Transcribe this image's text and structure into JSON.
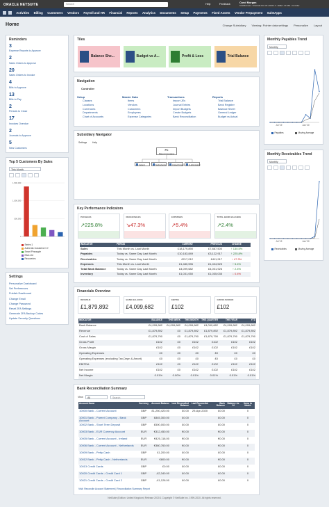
{
  "header": {
    "logo": "ORACLE NETSUITE",
    "search": "Search",
    "help": "Help",
    "feedback": "Feedback",
    "user": "Carol Morgan",
    "role": "SuiteBusiness - Financials First UK v2020.1.0 - EMEA - FF MW - Controller"
  },
  "nav": [
    "Activities",
    "Billing",
    "Customers",
    "Vendors",
    "Payroll and HR",
    "Financial",
    "Reports",
    "Analytics",
    "Documents",
    "Setup",
    "Payments",
    "Fixed Assets",
    "Vendor Prepayment",
    "SuiteApps"
  ],
  "page": {
    "title": "Home",
    "links": [
      "Change Subsidiary",
      "Viewing: Pointer data settings",
      "Personalize",
      "Layout"
    ]
  },
  "reminders": {
    "title": "Reminders",
    "items": [
      {
        "count": "3",
        "label": "Expense Reports to Approve"
      },
      {
        "count": "2",
        "label": "Sales Orders to Approve"
      },
      {
        "count": "20",
        "label": "Sales Orders to Invoice"
      },
      {
        "count": "4",
        "label": "Bills to Approve"
      },
      {
        "count": "13",
        "label": "Bills to Pay"
      },
      {
        "count": "2",
        "label": "Periods to Close"
      },
      {
        "count": "17",
        "label": "Invoices Overdue"
      },
      {
        "count": "2",
        "label": "Journals to Approve"
      },
      {
        "count": "5",
        "label": "New Customers"
      }
    ]
  },
  "top_customers": {
    "title": "Top 5 Customers By Sales",
    "period": "This Month",
    "chart": {
      "type": "bar",
      "ylim": [
        0,
        1500000
      ],
      "yticks": [
        0,
        {
          "value": 500000,
          "label": "500,000"
        },
        {
          "value": 1000000,
          "label": "1,000,000"
        },
        {
          "value": 1500000,
          "label": "1,500,000"
        }
      ],
      "series": [
        {
          "name": "Series 1",
          "color": "#d0342c",
          "values": [
            1400000
          ]
        },
        {
          "name": "Authentic Industries N.Y.",
          "color": "#f0a32f",
          "values": [
            320000
          ]
        },
        {
          "name": "Smart Pineapple",
          "color": "#4caf50",
          "values": [
            250000
          ]
        },
        {
          "name": "Eliza Ltd",
          "color": "#7e57c2",
          "values": [
            180000
          ]
        },
        {
          "name": "Recoveries",
          "color": "#2a63b0",
          "values": [
            120000
          ]
        }
      ]
    }
  },
  "settings": {
    "title": "Settings",
    "links": [
      "Personalize Dashboard",
      "Set Preferences",
      "Publish Dashboard",
      "Change Email",
      "Change Password",
      "Reset 2FA Settings",
      "Generate 2FA Backup Codes",
      "Update Security Questions"
    ]
  },
  "tiles": {
    "title": "Tiles",
    "items": [
      "Balance She...",
      "Budget vs A...",
      "Profit & Loss",
      "Trial Balance"
    ]
  },
  "navigation": {
    "title": "Navigation",
    "role": "Controller",
    "groups": [
      {
        "heading": "Setup",
        "items": [
          "Classes",
          "Locations",
          "Currencies",
          "Departments",
          "Chart of Accounts"
        ]
      },
      {
        "heading": "Master Data",
        "items": [
          "Items",
          "Vendors",
          "Customers",
          "Employees",
          "Expense Categories"
        ]
      },
      {
        "heading": "Transactions",
        "items": [
          "Import JEs",
          "Journal Entries",
          "Import Budgets",
          "Create Budgets",
          "Bank Reconciliation"
        ]
      },
      {
        "heading": "Reports",
        "items": [
          "Trial Balance",
          "Bank Register",
          "Balance Sheet",
          "General Ledger",
          "Budget vs Actual"
        ]
      }
    ]
  },
  "subsidiary_navigator": {
    "title": "Subsidiary Navigator",
    "settings": "Settings",
    "help": "Help",
    "root": {
      "code": "PC",
      "name": "Parent Company"
    },
    "children": [
      "Ireland",
      "Netherlands",
      "United Kingdom",
      "IL-Elimination"
    ]
  },
  "kpi": {
    "title": "Key Performance Indicators",
    "cards": [
      {
        "label": "PAYABLES",
        "value": "↗225.8%"
      },
      {
        "label": "RECEIVABLES",
        "value": "↘47.3%"
      },
      {
        "label": "EXPENSES",
        "value": "↗5.4%"
      },
      {
        "label": "TOTAL BANK BALANCE",
        "value": "↗2.4%"
      }
    ],
    "header": [
      "INDICATOR",
      "PERIOD",
      "CURRENT",
      "PREVIOUS",
      "CHANGE"
    ],
    "rows": [
      [
        "Sales",
        "This Month vs. Last Month",
        "£18,179,890",
        "£7,887,500",
        "↑ 130.5%"
      ],
      [
        "Payables",
        "Today vs. Same Day Last Month",
        "£10,183,849",
        "£3,122,917",
        "↑ 225.8%"
      ],
      [
        "Receivables",
        "Today vs. Same Day Last Month",
        "£217,012",
        "£411,917",
        "↓ 47.3%"
      ],
      [
        "Expenses",
        "This Month vs. Last Month",
        "£1,480,596",
        "£1,404,525",
        "↑ 5.4%"
      ],
      [
        "Total Bank Balance",
        "Today vs. Same Day Last Month",
        "£4,099,682",
        "£4,001,926",
        "↑ 2.4%"
      ],
      [
        "Inventory",
        "Today vs. Same Day Last Month",
        "£1,031,050",
        "£1,035,035",
        "↓ 0.4%"
      ]
    ]
  },
  "financials": {
    "title": "Financials Overview",
    "cards": [
      {
        "label": "REVENUE",
        "value": "£1,879,892"
      },
      {
        "label": "BANK BALANCE",
        "value": "£4,099,682"
      },
      {
        "label": "EBITDA",
        "value": "£102"
      },
      {
        "label": "GROSS MARGIN",
        "value": "£102"
      }
    ],
    "header": [
      "INDICATOR",
      "BALANCE",
      "THIS WEEK",
      "THIS MONTH",
      "THIS QUARTER",
      "THIS YEAR",
      "YTD"
    ],
    "rows": [
      [
        "Bank Balance",
        "£4,099,682",
        "£4,099,682",
        "£4,099,682",
        "£4,099,682",
        "£4,099,682",
        "£4,099,682"
      ],
      [
        "Revenue",
        "£1,879,892",
        "£0",
        "£1,879,892",
        "£1,879,892",
        "£1,879,892",
        "£1,879,892"
      ],
      [
        "Cost of Sales",
        "£1,879,790",
        "£0",
        "£1,879,790",
        "£1,879,790",
        "£1,879,790",
        "£1,879,790"
      ],
      [
        "Gross Profit",
        "£102",
        "£0",
        "£102",
        "£102",
        "£102",
        "£102"
      ],
      [
        "Gross Margin",
        "£102",
        "£0",
        "£102",
        "£102",
        "£102",
        "£102"
      ],
      [
        "Operating Expenses",
        "£0",
        "£0",
        "£0",
        "£0",
        "£0",
        "£0"
      ],
      [
        "Operating Expenses (excluding Tax,Depn & Amort)",
        "£0",
        "£0",
        "£0",
        "£0",
        "£0",
        "£0"
      ],
      [
        "EBITDA",
        "£102",
        "£0",
        "£102",
        "£102",
        "£102",
        "£102"
      ],
      [
        "Net Income",
        "£102",
        "£0",
        "£102",
        "£102",
        "£102",
        "£102"
      ],
      [
        "Net Margin",
        "0.01%",
        "0.00%",
        "0.01%",
        "0.01%",
        "0.01%",
        "0.01%"
      ]
    ]
  },
  "bank_reconciliation": {
    "title": "Bank Reconciliation Summary",
    "view_label": "View",
    "view": "All",
    "search": "Search",
    "header": [
      "Account Name",
      "Currency",
      "Account Balance",
      "Last Reconciled Balance",
      "Last Reconciled On",
      "Bank Balance",
      "Balance As Of",
      "Items to Match"
    ],
    "rows": [
      [
        "10000 Bank - Current Account",
        "GBP",
        "£1,250,420.00",
        "£0.00",
        "29-Apr-2020",
        "£0.00",
        "",
        "0"
      ],
      [
        "10001 Bank - Parent Company - Bank Account",
        "GBP",
        "£845,300.00",
        "£0.00",
        "",
        "£0.00",
        "",
        "0"
      ],
      [
        "10002 Bank - Short Term Deposit",
        "GBP",
        "£500,000.00",
        "£0.00",
        "",
        "£0.00",
        "",
        "0"
      ],
      [
        "10003 Bank - EUR Currency Account",
        "EUR",
        "€312,450.00",
        "€0.00",
        "",
        "€0.00",
        "",
        "0"
      ],
      [
        "10005 Bank - Current Account - Ireland",
        "EUR",
        "€420,118.00",
        "€0.00",
        "",
        "€0.00",
        "",
        "0"
      ],
      [
        "10006 Bank - Current Account - Netherlands",
        "EUR",
        "€380,760.00",
        "€0.00",
        "",
        "€0.00",
        "",
        "0"
      ],
      [
        "10009 Bank - Petty Cash",
        "GBP",
        "£1,200.00",
        "£0.00",
        "",
        "£0.00",
        "",
        "0"
      ],
      [
        "10012 Bank - Petty Cash - Netherlands",
        "EUR",
        "€800.00",
        "€0.00",
        "",
        "€0.00",
        "",
        "0"
      ],
      [
        "10013 Credit Cards",
        "GBP",
        "£0.00",
        "£0.00",
        "",
        "£0.00",
        "",
        "0"
      ],
      [
        "10020 Credit Cards - Credit Card 1",
        "GBP",
        "-£2,340.00",
        "£0.00",
        "",
        "£0.00",
        "",
        "0"
      ],
      [
        "10021 Credit Cards - Credit Card 2",
        "GBP",
        "-£1,128.00",
        "£0.00",
        "",
        "£0.00",
        "",
        "0"
      ]
    ],
    "footer_links": "Visit: Reconcile Account Statement | Reconciliation Summary Report"
  },
  "payables_trend": {
    "title": "Monthly Payables Trend",
    "period": "Monthly",
    "chart": {
      "type": "line",
      "ylim": [
        0,
        12000000
      ],
      "categories": [
        null,
        null,
        "Jul '19",
        null,
        null,
        null,
        null,
        null,
        "Jan '20",
        null,
        null,
        null
      ],
      "series": [
        {
          "name": "Payables",
          "color": "#2a63b0",
          "values": [
            0,
            0,
            0,
            0,
            0,
            0,
            0,
            0,
            1500000,
            800000,
            10200000,
            6000000
          ]
        },
        {
          "name": "Moving Average",
          "color": "#555555",
          "values": [
            0,
            0,
            0,
            0,
            0,
            0,
            0,
            0,
            500000,
            800000,
            4200000,
            5700000
          ]
        }
      ]
    }
  },
  "receivables_trend": {
    "title": "Monthly Receivables Trend",
    "period": "Monthly",
    "chart": {
      "type": "line",
      "ylim": [
        0,
        12000000
      ],
      "categories": [
        null,
        null,
        "Jul '19",
        null,
        null,
        null,
        null,
        null,
        "Jan '20",
        null,
        null,
        null
      ],
      "series": [
        {
          "name": "Receivables",
          "color": "#2a63b0",
          "values": [
            0,
            0,
            0,
            0,
            0,
            0,
            0,
            0,
            0,
            0,
            400000,
            10800000
          ]
        },
        {
          "name": "Moving Average",
          "color": "#555555",
          "values": [
            0,
            0,
            0,
            0,
            0,
            0,
            0,
            0,
            0,
            0,
            130000,
            3700000
          ]
        }
      ]
    }
  },
  "footer": "NetSuite (Edition: United Kingdom) Release 2020.1 Copyright © NetSuite Inc. 1999-2020. All rights reserved."
}
